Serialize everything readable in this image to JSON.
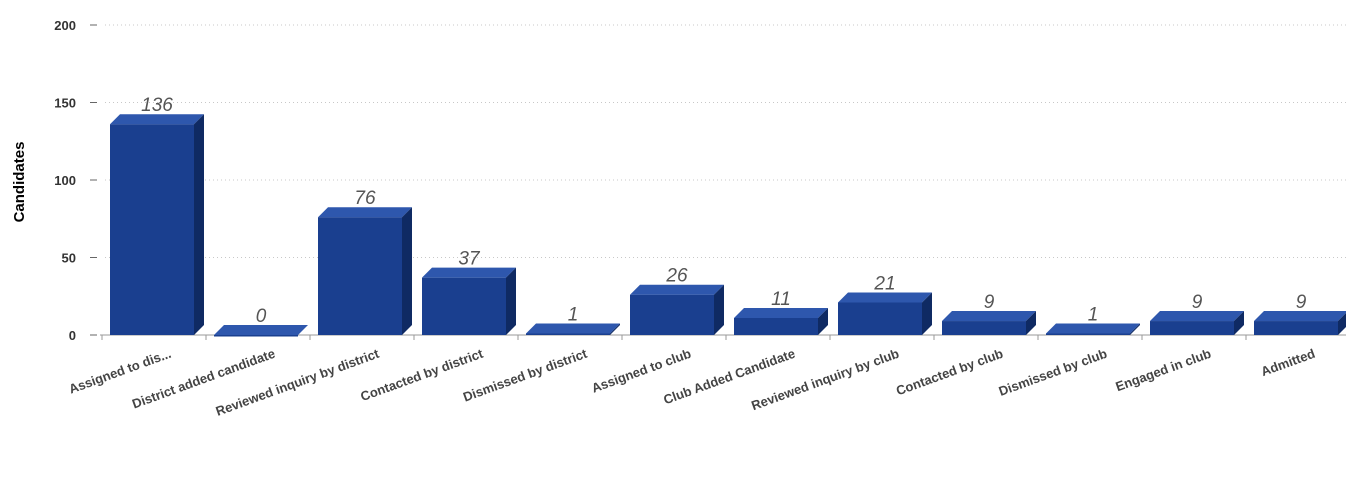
{
  "chart_data": {
    "type": "bar",
    "title": "",
    "xlabel": "",
    "ylabel": "Candidates",
    "ylim": [
      0,
      200
    ],
    "yticks": [
      0,
      50,
      100,
      150,
      200
    ],
    "grid": true,
    "bar_color": "#1a3f8f",
    "categories": [
      "Assigned to dis...",
      "District added candidate",
      "Reviewed inquiry by district",
      "Contacted by district",
      "Dismissed by district",
      "Assigned to club",
      "Club Added Candidate",
      "Reviewed inquiry by club",
      "Contacted by club",
      "Dismissed by club",
      "Engaged in club",
      "Admitted"
    ],
    "values": [
      136,
      0,
      76,
      37,
      1,
      26,
      11,
      21,
      9,
      1,
      9,
      9
    ]
  }
}
